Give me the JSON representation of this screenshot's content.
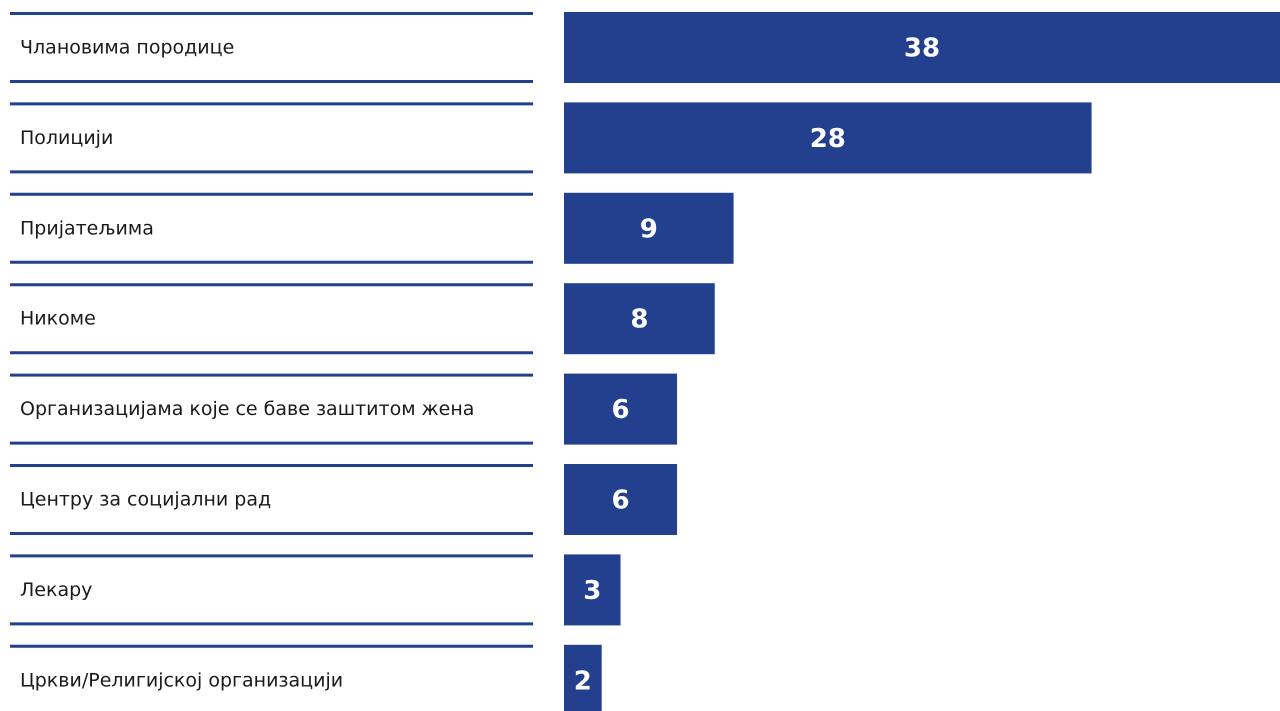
{
  "colors": {
    "bar": "#23408e",
    "line": "#23408e",
    "label_text": "#1a1a1a",
    "value_text": "#ffffff"
  },
  "chart_data": {
    "type": "bar",
    "orientation": "horizontal",
    "title": "",
    "xlabel": "",
    "ylabel": "",
    "xlim": [
      0,
      38
    ],
    "grid": false,
    "legend": "none",
    "categories": [
      "Члановима породице",
      "Полицији",
      "Пријатељима",
      "Никоме",
      "Организацијама које се баве заштитом жена",
      "Центру за социјални рад",
      "Лекару",
      "Цркви/Религијској организацији"
    ],
    "values": [
      38,
      28,
      9,
      8,
      6,
      6,
      3,
      2
    ]
  }
}
